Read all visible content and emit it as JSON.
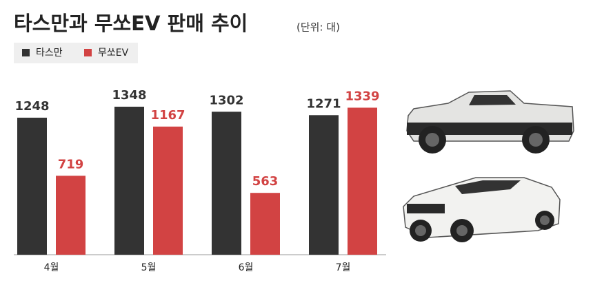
{
  "chart_data": {
    "type": "bar",
    "title": "타스만과 무쏘EV 판매 추이",
    "subtitle": "(단위: 대)",
    "categories": [
      "4월",
      "5월",
      "6월",
      "7월"
    ],
    "series": [
      {
        "name": "타스만",
        "color": "#333333",
        "values": [
          1248,
          1348,
          1302,
          1271
        ]
      },
      {
        "name": "무쏘EV",
        "color": "#d24343",
        "values": [
          719,
          1167,
          563,
          1339
        ]
      }
    ]
  }
}
